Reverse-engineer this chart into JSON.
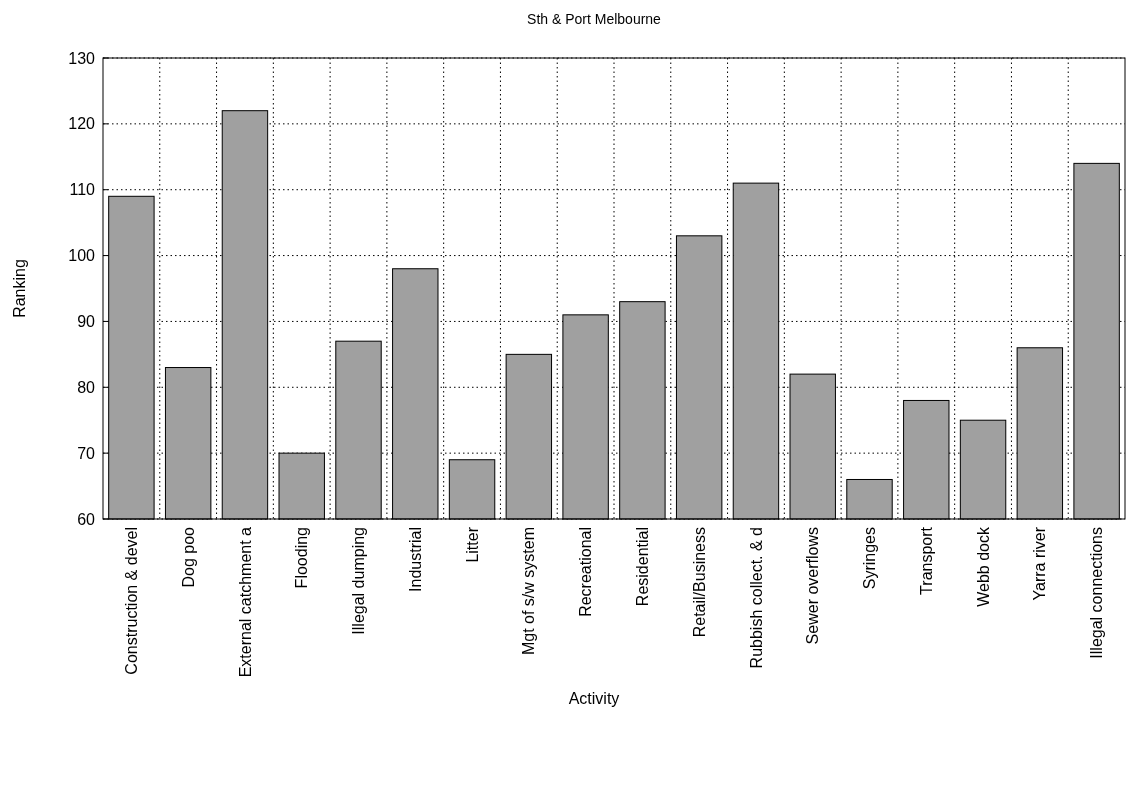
{
  "chart_data": {
    "type": "bar",
    "title": "Sth & Port Melbourne",
    "xlabel": "Activity",
    "ylabel": "Ranking",
    "categories": [
      "Construction & devel",
      "Dog poo",
      "External catchment a",
      "Flooding",
      "Illegal dumping",
      "Industrial",
      "Litter",
      "Mgt of s/w system",
      "Recreational",
      "Residential",
      "Retail/Business",
      "Rubbish collect. & d",
      "Sewer overflows",
      "Syringes",
      "Transport",
      "Webb dock",
      "Yarra river",
      "Illegal connections"
    ],
    "values": [
      109,
      83,
      122,
      70,
      87,
      98,
      69,
      85,
      91,
      93,
      103,
      111,
      82,
      66,
      78,
      75,
      86,
      114
    ],
    "color": "#a0a0a0",
    "ylim": [
      60,
      130
    ],
    "yticks": [
      60,
      70,
      80,
      90,
      100,
      110,
      120,
      130
    ],
    "grid": true
  }
}
